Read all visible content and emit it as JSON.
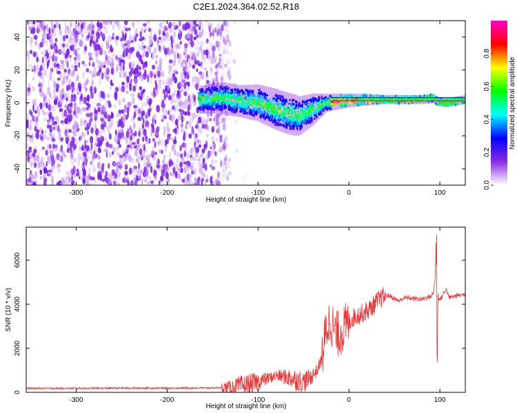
{
  "figure": {
    "title": "C2E1.2024.364.02.52.R18"
  },
  "chart_data": [
    {
      "type": "heatmap",
      "xlabel": "Height of straight line (km)",
      "ylabel": "Frequency (Hz)",
      "xlim": [
        -355,
        128
      ],
      "ylim": [
        -50,
        50
      ],
      "xticks": [
        -300,
        -200,
        -100,
        0,
        100
      ],
      "yticks": [
        -40,
        -20,
        0,
        20,
        40
      ],
      "xtick_labels": [
        "-300",
        "-200",
        "-100",
        "0",
        "100"
      ],
      "ytick_labels": [
        "-40",
        "-20",
        "0",
        "20",
        "40"
      ],
      "noise_region": {
        "x_range": [
          -355,
          -130
        ],
        "y_range": [
          -50,
          50
        ]
      },
      "band_centerline": [
        [
          -165,
          2
        ],
        [
          -140,
          3
        ],
        [
          -120,
          1
        ],
        [
          -100,
          0
        ],
        [
          -85,
          -3
        ],
        [
          -70,
          -6
        ],
        [
          -55,
          -8
        ],
        [
          -40,
          -4
        ],
        [
          -25,
          0
        ],
        [
          -10,
          1
        ],
        [
          0,
          1.5
        ],
        [
          20,
          2
        ],
        [
          50,
          2
        ],
        [
          80,
          2
        ],
        [
          92,
          3
        ],
        [
          97,
          1
        ],
        [
          105,
          0
        ],
        [
          128,
          2
        ]
      ],
      "band_halfwidth": [
        [
          -165,
          6
        ],
        [
          -140,
          7
        ],
        [
          -120,
          7
        ],
        [
          -100,
          8
        ],
        [
          -80,
          9
        ],
        [
          -60,
          9
        ],
        [
          -40,
          7
        ],
        [
          -25,
          4
        ],
        [
          0,
          3
        ],
        [
          40,
          2
        ],
        [
          128,
          2
        ]
      ],
      "grid": false,
      "colorbar": {
        "label": "Normalized spectral amplitude",
        "range": [
          0,
          1
        ],
        "ticks": [
          0.0,
          0.2,
          0.4,
          0.6,
          0.8
        ],
        "tick_labels": [
          "0.0",
          "0.2",
          "0.4",
          "0.6",
          "0.8"
        ],
        "colors": [
          "#ffffff",
          "#8a2be2",
          "#0000ff",
          "#00ffff",
          "#00ff00",
          "#ffff00",
          "#ff0000",
          "#ff00cc"
        ]
      }
    },
    {
      "type": "line",
      "xlabel": "Height of straight line (km)",
      "ylabel": "SNR (10 * v/v)",
      "xlim": [
        -355,
        128
      ],
      "ylim": [
        0,
        7500
      ],
      "xticks": [
        -300,
        -200,
        -100,
        0,
        100
      ],
      "yticks": [
        0,
        2000,
        4000,
        6000
      ],
      "xtick_labels": [
        "-300",
        "-200",
        "-100",
        "0",
        "100"
      ],
      "ytick_labels": [
        "0",
        "2000",
        "4000",
        "6000"
      ],
      "color": "#ee3333",
      "grid": false,
      "series": [
        {
          "x": [
            -355,
            -300,
            -250,
            -200,
            -150,
            -130,
            -110,
            -100,
            -90,
            -80,
            -70,
            -60,
            -50,
            -45,
            -40,
            -35,
            -30,
            -27,
            -24,
            -20,
            -17,
            -14,
            -10,
            -5,
            0,
            5,
            10,
            15,
            20,
            25,
            30,
            35,
            40,
            45,
            50,
            55,
            60,
            65,
            70,
            75,
            80,
            85,
            90,
            93,
            95,
            96,
            97,
            98,
            99,
            100,
            103,
            107,
            110,
            115,
            120,
            128
          ],
          "y": [
            180,
            180,
            190,
            190,
            200,
            230,
            330,
            480,
            620,
            760,
            700,
            600,
            470,
            600,
            760,
            1000,
            1500,
            2300,
            3000,
            3300,
            2900,
            2600,
            2700,
            2900,
            3200,
            3400,
            3500,
            3600,
            3700,
            3850,
            4100,
            4250,
            4400,
            4380,
            4250,
            4150,
            4280,
            4300,
            4260,
            4240,
            4220,
            4300,
            4350,
            4500,
            5300,
            7200,
            1000,
            4500,
            4250,
            4200,
            4400,
            4700,
            4300,
            4350,
            4400,
            4450
          ]
        }
      ]
    }
  ]
}
